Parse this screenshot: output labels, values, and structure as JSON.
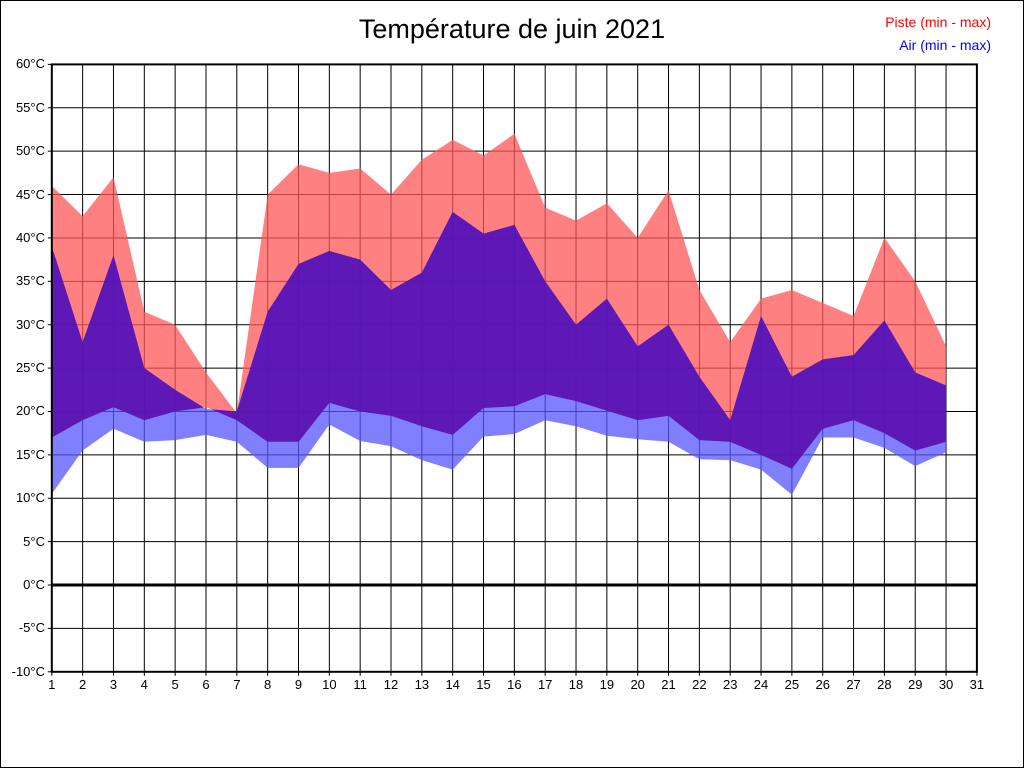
{
  "title": "Température de juin 2021",
  "legend": {
    "piste_label": "Piste (min - max)",
    "air_label": "Air (min - max)",
    "piste_color": "#ff0000",
    "air_color": "#0000ff"
  },
  "colors": {
    "piste_band": "rgba(255,85,85,0.75)",
    "air_band": "rgba(85,85,255,0.75)",
    "overlap_band": "rgba(81,0,168,0.75)",
    "grid": "#000000",
    "border": "#000000",
    "zero_line": "#000000",
    "background": "#ffffff"
  },
  "chart_data": {
    "type": "area",
    "subtype": "min-max range bands with overlap",
    "title": "Température de juin 2021",
    "xlabel": "",
    "ylabel": "",
    "grid": true,
    "legend_position": "top-right",
    "x_axis": {
      "range": [
        1,
        31
      ],
      "ticks": [
        "1",
        "2",
        "3",
        "4",
        "5",
        "6",
        "7",
        "8",
        "9",
        "10",
        "11",
        "12",
        "13",
        "14",
        "15",
        "16",
        "17",
        "18",
        "19",
        "20",
        "21",
        "22",
        "23",
        "24",
        "25",
        "26",
        "27",
        "28",
        "29",
        "30",
        "31"
      ]
    },
    "y_axis": {
      "range_c": [
        -10,
        60
      ],
      "step_c": 5,
      "ticks": [
        "60°C",
        "55°C",
        "50°C",
        "45°C",
        "40°C",
        "35°C",
        "30°C",
        "25°C",
        "20°C",
        "15°C",
        "10°C",
        "5°C",
        "0°C",
        "-5°C",
        "-10°C"
      ],
      "zero_line_emphasized": true
    },
    "x": [
      1,
      2,
      3,
      4,
      5,
      6,
      7,
      8,
      9,
      10,
      11,
      12,
      13,
      14,
      15,
      16,
      17,
      18,
      19,
      20,
      21,
      22,
      23,
      24,
      25,
      26,
      27,
      28,
      29,
      30
    ],
    "series": [
      {
        "name": "Piste (min - max)",
        "min": [
          17,
          19,
          20.5,
          19,
          20,
          20.5,
          19,
          16.5,
          16.5,
          21,
          20,
          19.5,
          18.3,
          17.3,
          20.4,
          20.6,
          22,
          21.2,
          20.1,
          19,
          19.5,
          16.7,
          16.5,
          15,
          13.4,
          18,
          19,
          17.5,
          15.5,
          16.5
        ],
        "max": [
          46,
          42.5,
          47,
          31.5,
          30,
          24.5,
          19.8,
          45,
          48.5,
          47.5,
          48,
          45,
          49,
          51.3,
          49.5,
          52,
          43.5,
          42,
          44,
          40,
          45.5,
          34,
          28,
          33,
          34,
          32.5,
          31,
          40,
          35,
          27.5
        ]
      },
      {
        "name": "Air (min - max)",
        "min": [
          10.5,
          15.5,
          18,
          16.5,
          16.7,
          17.3,
          16.5,
          13.5,
          13.5,
          18.5,
          16.6,
          16,
          14.4,
          13.3,
          17.1,
          17.4,
          19,
          18.3,
          17.2,
          16.8,
          16.5,
          14.5,
          14.4,
          13.3,
          10.4,
          17,
          17,
          15.8,
          13.7,
          15.3
        ],
        "max": [
          39,
          28,
          38,
          25,
          22.5,
          20.3,
          20,
          31.5,
          37,
          38.5,
          37.5,
          34,
          36,
          43,
          40.5,
          41.5,
          35,
          30,
          33,
          27.5,
          30,
          24,
          19,
          31,
          24,
          26,
          26.5,
          30.5,
          24.5,
          23
        ]
      }
    ]
  }
}
